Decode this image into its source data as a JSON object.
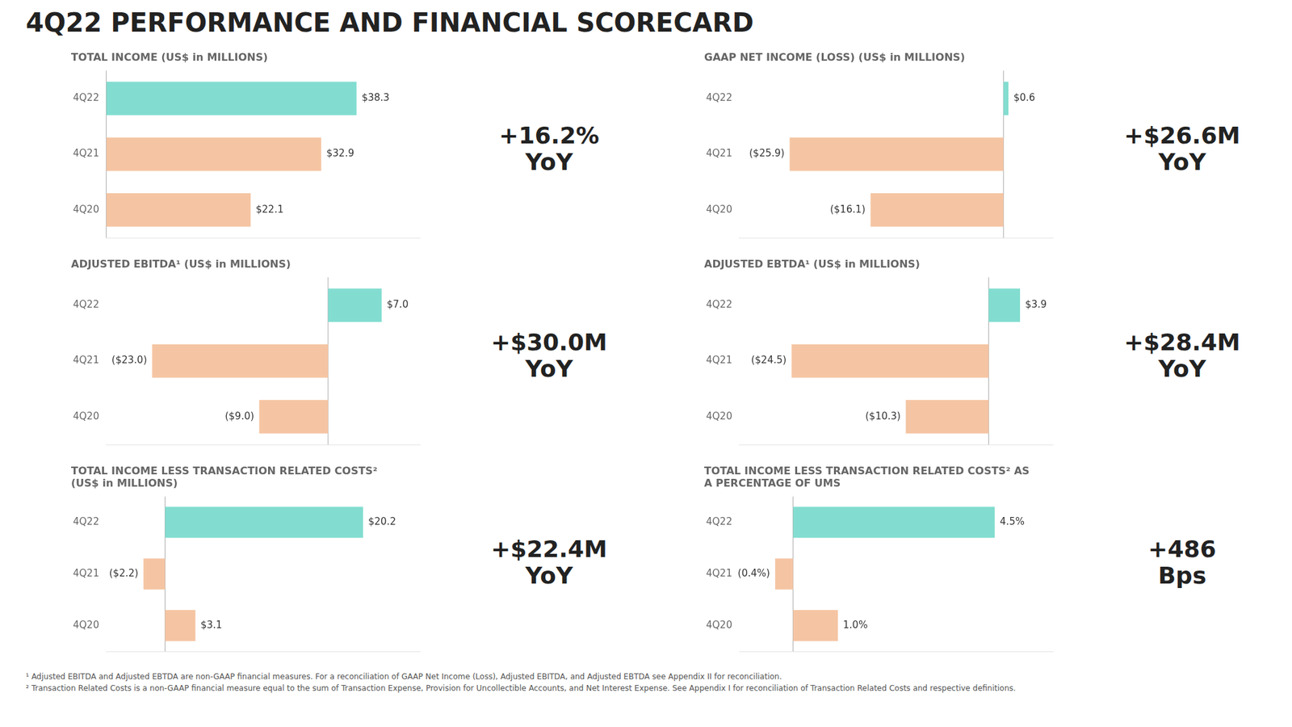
{
  "title": "4Q22 PERFORMANCE AND FINANCIAL SCORECARD",
  "footnotes": [
    "¹ Adjusted EBITDA and Adjusted EBTDA are non-GAAP financial measures. For a reconciliation of GAAP Net Income (Loss), Adjusted EBITDA, and Adjusted EBTDA see Appendix II for reconciliation.",
    "² Transaction Related Costs is a non-GAAP financial measure equal to the sum of Transaction Expense, Provision for Uncollectible Accounts, and Net Interest Expense. See Appendix I for reconciliation of Transaction Related Costs and respective definitions."
  ],
  "chart_data": [
    {
      "type": "bar",
      "orientation": "horizontal",
      "title": "TOTAL INCOME (US$ in MILLIONS)",
      "categories": [
        "4Q22",
        "4Q21",
        "4Q20"
      ],
      "values": [
        38.3,
        32.9,
        22.1
      ],
      "value_labels": [
        "$38.3",
        "$32.9",
        "$22.1"
      ],
      "data_labels": true,
      "colors": [
        "#82DDD0",
        "#F5C5A3",
        "#F5C5A3"
      ],
      "annotation": "+16.2%\nYoY",
      "xlim": [
        0,
        48
      ],
      "grid": false,
      "tick_labels": "y"
    },
    {
      "type": "bar",
      "orientation": "horizontal",
      "title": "GAAP NET INCOME (LOSS) (US$ in MILLIONS)",
      "categories": [
        "4Q22",
        "4Q21",
        "4Q20"
      ],
      "values": [
        0.6,
        -25.9,
        -16.1
      ],
      "value_labels": [
        "$0.6",
        "($25.9)",
        "($16.1)"
      ],
      "data_labels": true,
      "colors": [
        "#82DDD0",
        "#F5C5A3",
        "#F5C5A3"
      ],
      "annotation": "+$26.6M\nYoY",
      "xlim": [
        -32,
        6
      ],
      "grid": false,
      "tick_labels": "y"
    },
    {
      "type": "bar",
      "orientation": "horizontal",
      "title": "ADJUSTED EBITDA¹ (US$ in MILLIONS)",
      "categories": [
        "4Q22",
        "4Q21",
        "4Q20"
      ],
      "values": [
        7.0,
        -23.0,
        -9.0
      ],
      "value_labels": [
        "$7.0",
        "($23.0)",
        "($9.0)"
      ],
      "data_labels": true,
      "colors": [
        "#82DDD0",
        "#F5C5A3",
        "#F5C5A3"
      ],
      "annotation": "+$30.0M\nYoY",
      "xlim": [
        -29,
        12
      ],
      "grid": false,
      "tick_labels": "y"
    },
    {
      "type": "bar",
      "orientation": "horizontal",
      "title": "ADJUSTED EBTDA¹ (US$ in MILLIONS)",
      "categories": [
        "4Q22",
        "4Q21",
        "4Q20"
      ],
      "values": [
        3.9,
        -24.5,
        -10.3
      ],
      "value_labels": [
        "$3.9",
        "($24.5)",
        "($10.3)"
      ],
      "data_labels": true,
      "colors": [
        "#82DDD0",
        "#F5C5A3",
        "#F5C5A3"
      ],
      "annotation": "+$28.4M\nYoY",
      "xlim": [
        -31,
        8
      ],
      "grid": false,
      "tick_labels": "y"
    },
    {
      "type": "bar",
      "orientation": "horizontal",
      "title": "TOTAL INCOME LESS TRANSACTION RELATED COSTS²\n(US$ in MILLIONS)",
      "categories": [
        "4Q22",
        "4Q21",
        "4Q20"
      ],
      "values": [
        20.2,
        -2.2,
        3.1
      ],
      "value_labels": [
        "$20.2",
        "($2.2)",
        "$3.1"
      ],
      "data_labels": true,
      "colors": [
        "#82DDD0",
        "#F5C5A3",
        "#F5C5A3"
      ],
      "annotation": "+$22.4M\nYoY",
      "xlim": [
        -6,
        26
      ],
      "grid": false,
      "tick_labels": "y"
    },
    {
      "type": "bar",
      "orientation": "horizontal",
      "title": "TOTAL INCOME LESS TRANSACTION RELATED COSTS² AS\nA PERCENTAGE OF UMS",
      "categories": [
        "4Q22",
        "4Q21",
        "4Q20"
      ],
      "values": [
        4.5,
        -0.4,
        1.0
      ],
      "value_labels": [
        "4.5%",
        "(0.4%)",
        "1.0%"
      ],
      "data_labels": true,
      "colors": [
        "#82DDD0",
        "#F5C5A3",
        "#F5C5A3"
      ],
      "annotation": "+486\nBps",
      "xlim": [
        -1.2,
        5.8
      ],
      "grid": false,
      "tick_labels": "y"
    }
  ]
}
